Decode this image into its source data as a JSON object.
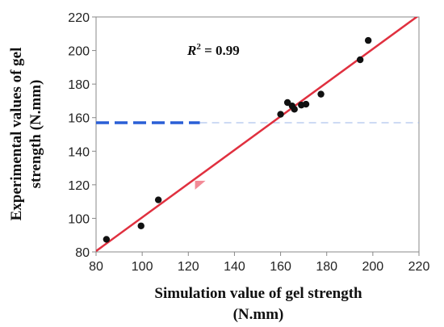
{
  "chart_data": {
    "type": "scatter",
    "xlabel_lines": [
      "Simulation value of gel strength",
      "(N.mm)"
    ],
    "ylabel_lines": [
      "Experimental values of gel",
      "strength (N.mm)"
    ],
    "xlim": [
      80,
      220
    ],
    "ylim": [
      80,
      220
    ],
    "xticks": [
      "80",
      "100",
      "120",
      "140",
      "160",
      "180",
      "200",
      "220"
    ],
    "yticks": [
      "80",
      "100",
      "120",
      "140",
      "160",
      "180",
      "200",
      "220"
    ],
    "grid": false,
    "annotation": {
      "prefix": "R",
      "sup": "2",
      "rest": " = 0.99"
    },
    "points": [
      {
        "x": 84.5,
        "y": 87.5
      },
      {
        "x": 99.5,
        "y": 95.5
      },
      {
        "x": 107,
        "y": 111
      },
      {
        "x": 160,
        "y": 162
      },
      {
        "x": 163,
        "y": 169
      },
      {
        "x": 165,
        "y": 167
      },
      {
        "x": 166,
        "y": 165
      },
      {
        "x": 169,
        "y": 167.5
      },
      {
        "x": 171,
        "y": 168
      },
      {
        "x": 177.5,
        "y": 174
      },
      {
        "x": 194.5,
        "y": 194.5
      },
      {
        "x": 198,
        "y": 206
      }
    ],
    "fit_line": {
      "x1": 80,
      "y1": 80.5,
      "x2": 220,
      "y2": 221
    },
    "reference_y": 157,
    "marker": {
      "x": 125,
      "y": 120
    },
    "colors": {
      "points": "#111111",
      "fit": "#e0303f",
      "reference": "#2a5fd6",
      "reference_light": "#9bb4e8",
      "marker": "#f28a96",
      "frame": "#888888"
    }
  }
}
